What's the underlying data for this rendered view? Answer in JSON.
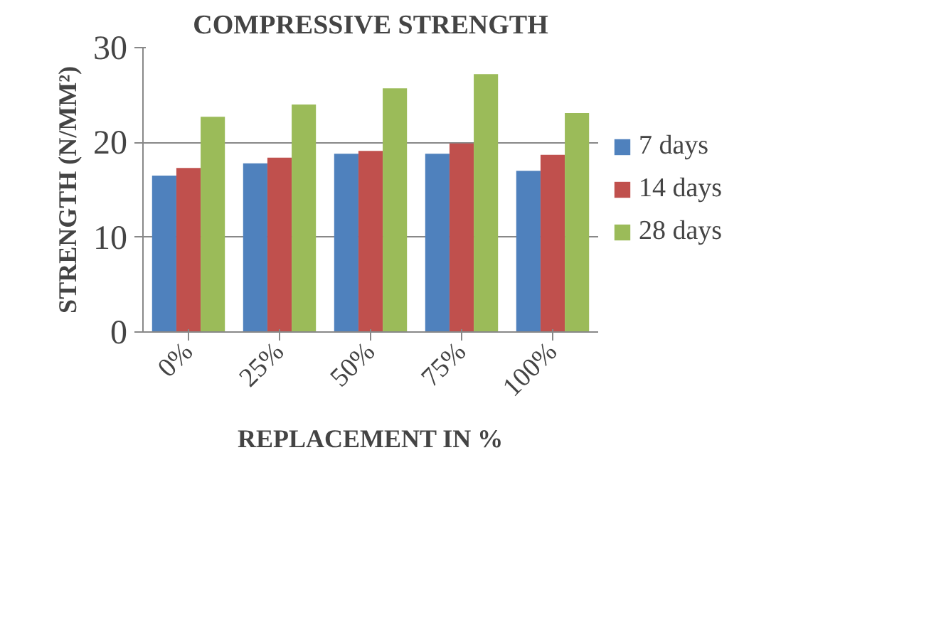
{
  "chart_data": {
    "type": "bar",
    "title": "COMPRESSIVE STRENGTH",
    "xlabel": "REPLACEMENT IN %",
    "ylabel": "STRENGTH (N/MM²)",
    "categories": [
      "0%",
      "25%",
      "50%",
      "75%",
      "100%"
    ],
    "series": [
      {
        "name": "7 days",
        "color": "#4f81bd",
        "values": [
          16.5,
          17.8,
          18.8,
          18.8,
          17.0
        ]
      },
      {
        "name": "14 days",
        "color": "#c0504d",
        "values": [
          17.3,
          18.4,
          19.1,
          19.9,
          18.7
        ]
      },
      {
        "name": "28 days",
        "color": "#9bbb59",
        "values": [
          22.7,
          24.0,
          25.7,
          27.2,
          23.1
        ]
      }
    ],
    "ylim": [
      0,
      30
    ],
    "yticks": [
      0,
      10,
      20,
      30
    ],
    "grid": "y",
    "legend": "right"
  }
}
